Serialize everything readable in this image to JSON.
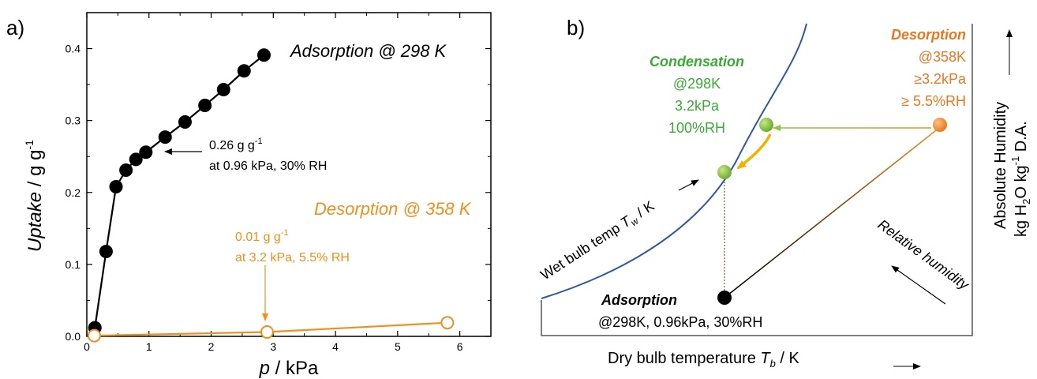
{
  "chart_data": [
    {
      "type": "scatter",
      "panel_label": "a)",
      "xlabel_var": "p",
      "xlabel_unit": " / kPa",
      "ylabel_var": "Uptake",
      "ylabel_unit": " / g g",
      "ylabel_exp": "-1",
      "xlim": [
        0,
        6.5
      ],
      "ylim": [
        0,
        0.45
      ],
      "xticks": [
        "0",
        "1",
        "2",
        "3",
        "4",
        "5",
        "6"
      ],
      "yticks": [
        "0.0",
        "0.1",
        "0.2",
        "0.3",
        "0.4"
      ],
      "series": [
        {
          "name": "Adsorption @ 298 K",
          "color": "#000000",
          "marker": "filled-circle",
          "x": [
            0.13,
            0.31,
            0.47,
            0.63,
            0.79,
            0.95,
            1.26,
            1.58,
            1.9,
            2.2,
            2.53,
            2.85
          ],
          "y": [
            0.012,
            0.118,
            0.208,
            0.231,
            0.246,
            0.256,
            0.277,
            0.298,
            0.321,
            0.343,
            0.369,
            0.391
          ]
        },
        {
          "name": "Desorption @ 358 K",
          "color": "#f28e1c",
          "marker": "open-circle",
          "x": [
            0.12,
            2.9,
            5.8
          ],
          "y": [
            0.001,
            0.006,
            0.019
          ]
        }
      ],
      "annotations": [
        {
          "line1_value": "0.26 g g",
          "line1_exp": "-1",
          "line2": "at 0.96 kPa, 30% RH",
          "color": "#000000"
        },
        {
          "line1_value": "0.01 g g",
          "line1_exp": "-1",
          "line2": "at 3.2 kPa, 5.5% RH",
          "color": "#f28e1c"
        }
      ]
    },
    {
      "type": "diagram",
      "panel_label": "b)",
      "xlabel_text": "Dry bulb temperature ",
      "xlabel_var": "T",
      "xlabel_sub": "b",
      "xlabel_unit": " / K",
      "ylabel_line1": "Absolute Humidity",
      "ylabel_line2_a": "kg H",
      "ylabel_line2_sub": "2",
      "ylabel_line2_b": "O kg",
      "ylabel_line2_exp": "-1",
      "ylabel_line2_c": " D.A.",
      "wet_bulb_text": "Wet bulb temp ",
      "wet_bulb_var": "T",
      "wet_bulb_sub": "w",
      "wet_bulb_unit": " / K",
      "relative_humidity": "Relative humidity",
      "states": [
        {
          "title": "Condensation",
          "lines": [
            "@298K",
            "3.2kPa",
            "100%RH"
          ],
          "color": "#3aaa35"
        },
        {
          "title": "Desorption",
          "lines": [
            "@358K",
            "≥3.2kPa",
            "≥ 5.5%RH"
          ],
          "color": "#e87722"
        },
        {
          "title": "Adsorption",
          "lines": [
            "@298K, 0.96kPa, 30%RH"
          ],
          "color": "#000000"
        }
      ],
      "colors": {
        "saturation_curve": "#2d5aa0",
        "green_point": "#8cc63f",
        "orange_point": "#f28e1c"
      }
    }
  ]
}
